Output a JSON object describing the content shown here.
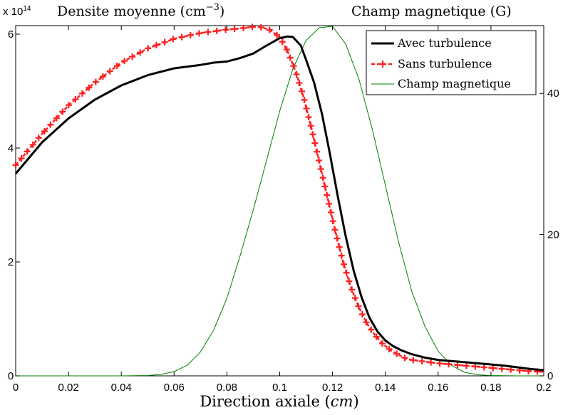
{
  "chart_data": {
    "type": "line",
    "title_left": "Densite moyenne (cm",
    "title_left_exp": "−3",
    "title_left_close": ")",
    "title_right": "Champ magnetique (G)",
    "xlabel_prefix": "Direction axiale (",
    "xlabel_unit": "cm",
    "xlabel_suffix": ")",
    "y_left_scale_base": "x 10",
    "y_left_scale_exp": "14",
    "xlim": [
      0,
      0.2
    ],
    "ylim_left": [
      0,
      6.15
    ],
    "ylim_right": [
      0,
      49.6
    ],
    "x_ticks": [
      0,
      0.02,
      0.04,
      0.06,
      0.08,
      0.1,
      0.12,
      0.14,
      0.16,
      0.18,
      0.2
    ],
    "x_tick_labels": [
      "0",
      "0.02",
      "0.04",
      "0.06",
      "0.08",
      "0.1",
      "0.12",
      "0.14",
      "0.16",
      "0.18",
      "0.2"
    ],
    "y_left_ticks": [
      0,
      2,
      4,
      6
    ],
    "y_left_tick_labels": [
      "0",
      "2",
      "4",
      "6"
    ],
    "y_right_ticks": [
      0,
      20,
      40
    ],
    "y_right_tick_labels": [
      "0",
      "20",
      "40"
    ],
    "legend": {
      "placement": "top-right",
      "entries": [
        "Avec turbulence",
        "Sans turbulence",
        "Champ magnetique"
      ]
    },
    "grid": false,
    "series": [
      {
        "name": "Avec turbulence",
        "axis": "left",
        "color": "#000000",
        "style": "solid",
        "x": [
          0,
          0.01,
          0.02,
          0.03,
          0.04,
          0.05,
          0.06,
          0.07,
          0.075,
          0.08,
          0.085,
          0.09,
          0.095,
          0.1,
          0.103,
          0.105,
          0.108,
          0.11,
          0.113,
          0.116,
          0.119,
          0.122,
          0.125,
          0.128,
          0.131,
          0.134,
          0.137,
          0.14,
          0.143,
          0.146,
          0.15,
          0.155,
          0.16,
          0.165,
          0.17,
          0.175,
          0.18,
          0.185,
          0.19,
          0.195,
          0.2
        ],
        "y": [
          3.55,
          4.1,
          4.52,
          4.85,
          5.1,
          5.28,
          5.4,
          5.46,
          5.5,
          5.52,
          5.58,
          5.66,
          5.8,
          5.93,
          5.96,
          5.95,
          5.8,
          5.55,
          5.15,
          4.6,
          3.9,
          3.15,
          2.45,
          1.85,
          1.38,
          1.02,
          0.78,
          0.62,
          0.52,
          0.45,
          0.38,
          0.32,
          0.28,
          0.26,
          0.24,
          0.22,
          0.2,
          0.18,
          0.15,
          0.12,
          0.1
        ]
      },
      {
        "name": "Sans turbulence",
        "axis": "left",
        "color": "#ff2020",
        "style": "dashed-plus",
        "x": [
          0,
          0.01,
          0.02,
          0.03,
          0.04,
          0.05,
          0.06,
          0.07,
          0.08,
          0.085,
          0.09,
          0.093,
          0.096,
          0.1,
          0.103,
          0.106,
          0.109,
          0.112,
          0.115,
          0.118,
          0.121,
          0.124,
          0.127,
          0.13,
          0.133,
          0.136,
          0.139,
          0.142,
          0.145,
          0.148,
          0.15,
          0.155,
          0.16,
          0.165,
          0.17,
          0.175,
          0.18,
          0.185,
          0.19,
          0.195,
          0.2
        ],
        "y": [
          3.7,
          4.25,
          4.75,
          5.15,
          5.5,
          5.75,
          5.92,
          6.02,
          6.08,
          6.1,
          6.13,
          6.12,
          6.08,
          5.95,
          5.7,
          5.35,
          4.9,
          4.35,
          3.75,
          3.15,
          2.55,
          2.0,
          1.55,
          1.2,
          0.92,
          0.72,
          0.56,
          0.45,
          0.37,
          0.3,
          0.28,
          0.25,
          0.22,
          0.2,
          0.18,
          0.16,
          0.14,
          0.12,
          0.1,
          0.08,
          0.07
        ]
      },
      {
        "name": "Champ magnetique",
        "axis": "right",
        "color": "#008000",
        "style": "thin",
        "x": [
          0,
          0.02,
          0.04,
          0.05,
          0.055,
          0.06,
          0.065,
          0.07,
          0.075,
          0.08,
          0.085,
          0.09,
          0.095,
          0.1,
          0.105,
          0.11,
          0.115,
          0.12,
          0.125,
          0.13,
          0.135,
          0.14,
          0.145,
          0.15,
          0.155,
          0.16,
          0.165,
          0.17,
          0.175,
          0.18,
          0.19,
          0.2
        ],
        "y": [
          0,
          0,
          0,
          0.05,
          0.2,
          0.6,
          1.5,
          3.4,
          6.5,
          11.0,
          17.0,
          23.5,
          30.5,
          37.5,
          43.5,
          47.5,
          49.3,
          49.5,
          47.0,
          42.0,
          35.0,
          27.0,
          19.0,
          12.0,
          7.0,
          3.5,
          1.5,
          0.5,
          0.15,
          0.05,
          0,
          0
        ]
      }
    ]
  }
}
